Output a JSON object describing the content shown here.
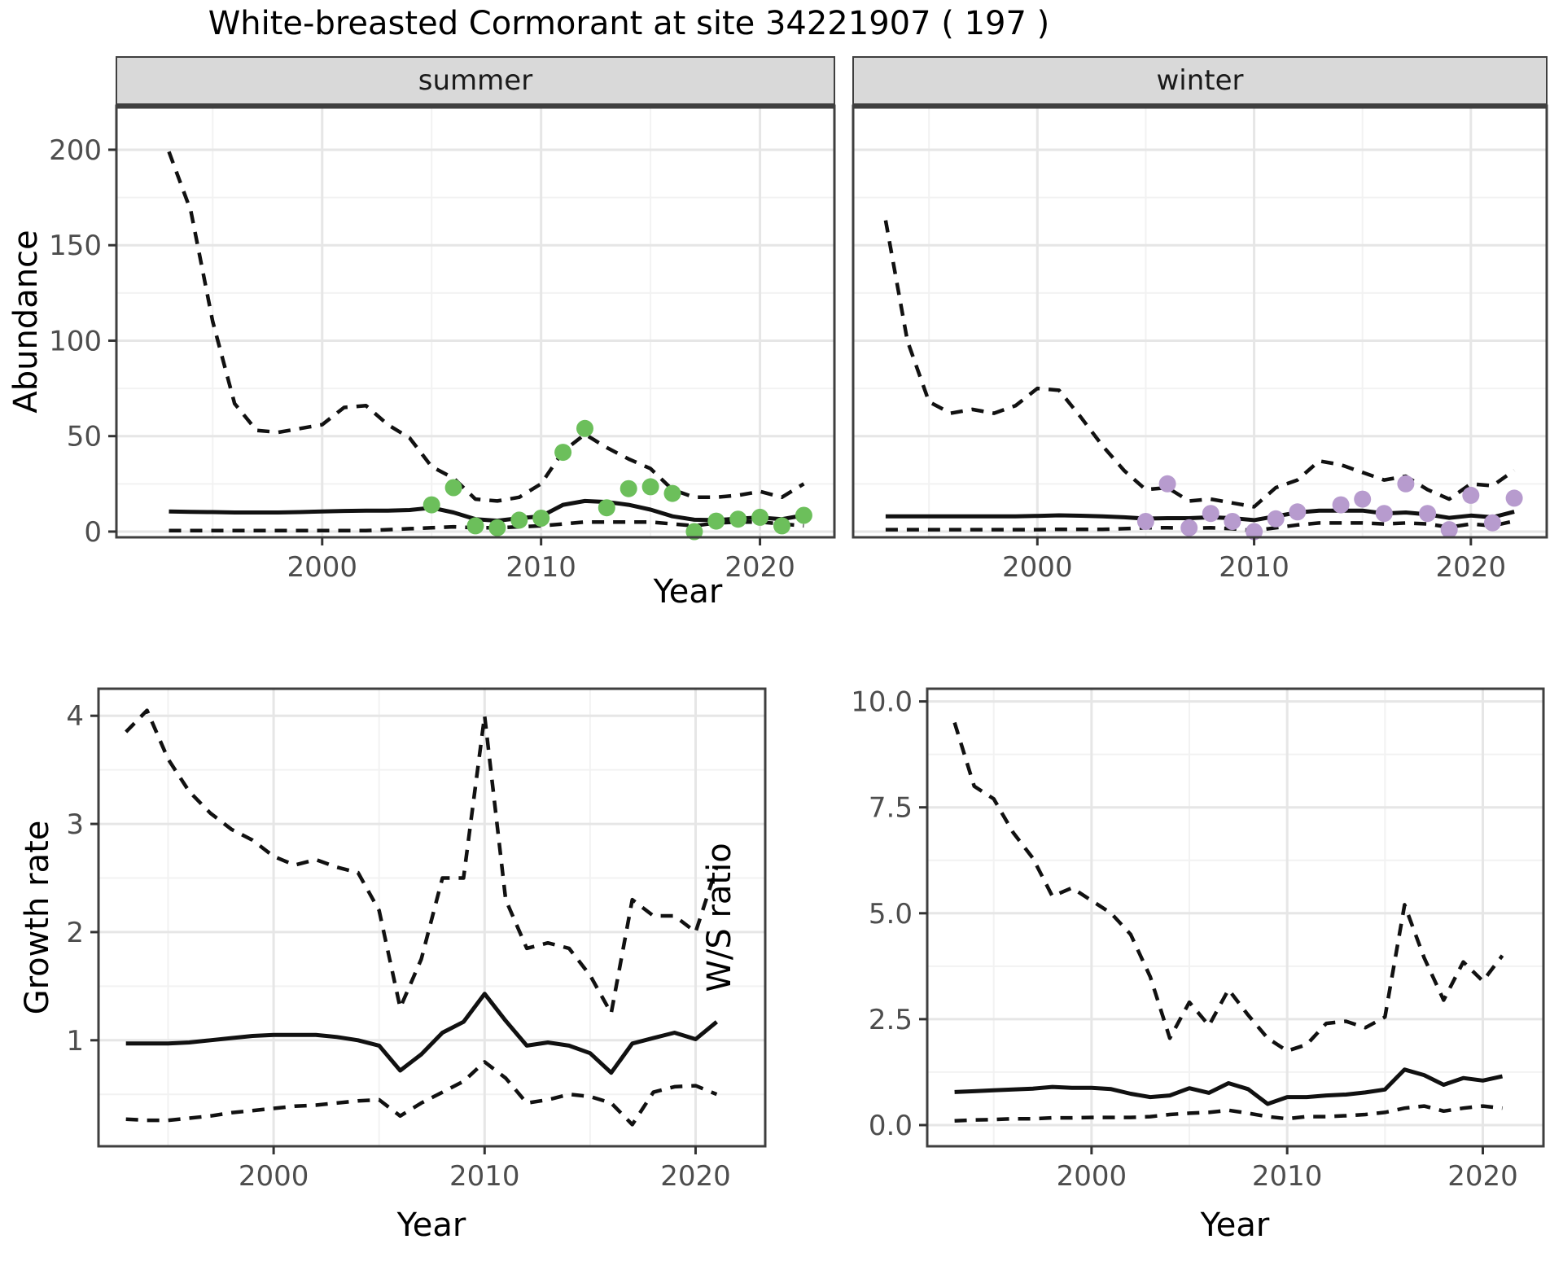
{
  "title": "White-breasted Cormorant at site 34221907 ( 197 )",
  "colors": {
    "summer_point": "#6CBF5B",
    "winter_point": "#B79BCE",
    "line": "#111111",
    "grid_major": "#E6E6E6",
    "grid_minor": "#F2F2F2",
    "strip_bg": "#D9D9D9",
    "panel_border": "#3F3F3F",
    "tick_text": "#4D4D4D"
  },
  "chart_data": [
    {
      "id": "abundance-summer",
      "type": "line",
      "facet_label": "summer",
      "xlabel": "Year",
      "ylabel": "Abundance",
      "xlim": [
        1990.6,
        2023.4
      ],
      "ylim": [
        -3,
        223
      ],
      "xticks": [
        2000,
        2010,
        2020
      ],
      "xtick_labels": [
        "2000",
        "2010",
        "2020"
      ],
      "xminor": [
        1995,
        2005,
        2015
      ],
      "ytick_values": [
        0,
        50,
        100,
        150,
        200
      ],
      "ytick_labels": [
        "0",
        "50",
        "100",
        "150",
        "200"
      ],
      "yminor": [
        25,
        75,
        125,
        175
      ],
      "x": [
        1993,
        1994,
        1995,
        1996,
        1997,
        1998,
        1999,
        2000,
        2001,
        2002,
        2003,
        2004,
        2005,
        2006,
        2007,
        2008,
        2009,
        2010,
        2011,
        2012,
        2013,
        2014,
        2015,
        2016,
        2017,
        2018,
        2019,
        2020,
        2021,
        2022
      ],
      "series": [
        {
          "name": "upper-ci",
          "style": "dashed",
          "values": [
            199,
            168,
            110,
            67,
            53,
            52,
            54,
            56,
            65,
            66,
            56,
            49,
            34,
            28,
            17,
            16,
            18,
            25,
            42,
            51,
            44,
            38,
            33,
            22,
            18,
            18,
            19,
            21,
            18,
            25
          ]
        },
        {
          "name": "median",
          "style": "solid",
          "values": [
            10.5,
            10.3,
            10.2,
            10,
            10,
            10,
            10.2,
            10.5,
            10.8,
            11,
            11,
            11.3,
            12.5,
            10,
            6.5,
            5.7,
            7,
            8,
            14,
            16,
            15.5,
            14,
            11.5,
            8,
            6.2,
            6,
            6.8,
            7.3,
            6.5,
            8.5
          ]
        },
        {
          "name": "lower-ci",
          "style": "dashed",
          "values": [
            0.5,
            0.5,
            0.5,
            0.5,
            0.5,
            0.5,
            0.5,
            0.5,
            0.5,
            0.5,
            1,
            1.5,
            2,
            2.5,
            2,
            2,
            2.5,
            3,
            4,
            5,
            5,
            5,
            5,
            4,
            3,
            4.5,
            5,
            5,
            4,
            3
          ]
        }
      ],
      "points": {
        "name": "observed-counts-summer",
        "color": "#6CBF5B",
        "x": [
          2005,
          2006,
          2007,
          2008,
          2009,
          2010,
          2011,
          2012,
          2013,
          2014,
          2015,
          2016,
          2017,
          2018,
          2019,
          2020,
          2021,
          2022
        ],
        "y": [
          14,
          23,
          3,
          2,
          6,
          7,
          41.5,
          54,
          12.5,
          22.5,
          23.5,
          20,
          0,
          5.5,
          6.5,
          7.5,
          3,
          8.5
        ]
      }
    },
    {
      "id": "abundance-winter",
      "type": "line",
      "facet_label": "winter",
      "xlabel": "Year",
      "ylabel": "Abundance",
      "xlim": [
        1991.5,
        2023.5
      ],
      "ylim": [
        -3,
        223
      ],
      "xticks": [
        2000,
        2010,
        2020
      ],
      "xtick_labels": [
        "2000",
        "2010",
        "2020"
      ],
      "xminor": [
        1995,
        2005,
        2015
      ],
      "ytick_values": [
        0,
        50,
        100,
        150,
        200
      ],
      "ytick_labels": [
        "0",
        "50",
        "100",
        "150",
        "200"
      ],
      "yminor": [
        25,
        75,
        125,
        175
      ],
      "x": [
        1993,
        1994,
        1995,
        1996,
        1997,
        1998,
        1999,
        2000,
        2001,
        2002,
        2003,
        2004,
        2005,
        2006,
        2007,
        2008,
        2009,
        2010,
        2011,
        2012,
        2013,
        2014,
        2015,
        2016,
        2017,
        2018,
        2019,
        2020,
        2021,
        2022
      ],
      "series": [
        {
          "name": "upper-ci",
          "style": "dashed",
          "values": [
            163,
            100,
            68,
            62,
            64,
            62,
            66,
            75,
            74,
            60,
            45,
            32,
            22,
            23,
            16,
            17,
            15,
            13,
            23,
            27,
            37,
            35,
            31,
            27,
            29,
            22,
            17,
            25,
            24,
            32
          ]
        },
        {
          "name": "median",
          "style": "solid",
          "values": [
            8,
            8,
            8,
            8,
            8,
            8,
            8,
            8.2,
            8.5,
            8.3,
            8,
            7.5,
            6.8,
            7,
            7,
            7.5,
            7,
            6,
            8,
            10,
            11,
            11,
            11,
            9.5,
            10,
            9,
            7.2,
            8.4,
            7.5,
            10.4
          ]
        },
        {
          "name": "lower-ci",
          "style": "dashed",
          "values": [
            1,
            1,
            1,
            1,
            1,
            1,
            1,
            1,
            1.2,
            1.2,
            1.2,
            1.5,
            2,
            2,
            1.8,
            2,
            1.5,
            0.5,
            2,
            3.5,
            4.5,
            4.5,
            4.5,
            4,
            4.5,
            4,
            2.3,
            4,
            3,
            5.5
          ]
        }
      ],
      "points": {
        "name": "observed-counts-winter",
        "color": "#B79BCE",
        "x": [
          2005,
          2006,
          2007,
          2008,
          2009,
          2010,
          2011,
          2012,
          2014,
          2015,
          2016,
          2017,
          2018,
          2019,
          2020,
          2021,
          2022
        ],
        "y": [
          5.3,
          25,
          2,
          9.5,
          5.3,
          0,
          6.7,
          10.3,
          14,
          17,
          9.5,
          25,
          9.5,
          1,
          19,
          4.6,
          17.5
        ]
      }
    },
    {
      "id": "growth-rate",
      "type": "line",
      "facet_label": "",
      "xlabel": "Year",
      "ylabel": "Growth rate",
      "xlim": [
        1991.7,
        2023.3
      ],
      "ylim": [
        0.02,
        4.25
      ],
      "xticks": [
        2000,
        2010,
        2020
      ],
      "xtick_labels": [
        "2000",
        "2010",
        "2020"
      ],
      "xminor": [
        1995,
        2005,
        2015
      ],
      "ytick_values": [
        1,
        2,
        3,
        4
      ],
      "ytick_labels": [
        "1",
        "2",
        "3",
        "4"
      ],
      "yminor": [
        0.5,
        1.5,
        2.5,
        3.5
      ],
      "x": [
        1993,
        1994,
        1995,
        1996,
        1997,
        1998,
        1999,
        2000,
        2001,
        2002,
        2003,
        2004,
        2005,
        2006,
        2007,
        2008,
        2009,
        2010,
        2011,
        2012,
        2013,
        2014,
        2015,
        2016,
        2017,
        2018,
        2019,
        2020,
        2021
      ],
      "series": [
        {
          "name": "upper-ci",
          "style": "dashed",
          "values": [
            3.85,
            4.05,
            3.6,
            3.3,
            3.1,
            2.95,
            2.85,
            2.7,
            2.62,
            2.67,
            2.6,
            2.55,
            2.2,
            1.3,
            1.75,
            2.5,
            2.5,
            4.0,
            2.3,
            1.85,
            1.9,
            1.85,
            1.6,
            1.25,
            2.3,
            2.15,
            2.15,
            2.0,
            2.6
          ]
        },
        {
          "name": "median",
          "style": "solid",
          "values": [
            0.97,
            0.97,
            0.97,
            0.98,
            1.0,
            1.02,
            1.04,
            1.05,
            1.05,
            1.05,
            1.03,
            1.0,
            0.95,
            0.72,
            0.87,
            1.07,
            1.17,
            1.43,
            1.18,
            0.95,
            0.98,
            0.95,
            0.88,
            0.7,
            0.97,
            1.02,
            1.07,
            1.01,
            1.17
          ]
        },
        {
          "name": "lower-ci",
          "style": "dashed",
          "values": [
            0.27,
            0.26,
            0.26,
            0.28,
            0.3,
            0.33,
            0.35,
            0.37,
            0.39,
            0.4,
            0.42,
            0.44,
            0.45,
            0.3,
            0.42,
            0.52,
            0.62,
            0.8,
            0.65,
            0.42,
            0.45,
            0.5,
            0.48,
            0.42,
            0.22,
            0.52,
            0.57,
            0.58,
            0.5
          ]
        }
      ],
      "points": null
    },
    {
      "id": "ws-ratio",
      "type": "line",
      "facet_label": "",
      "xlabel": "Year",
      "ylabel": "W/S ratio",
      "xlim": [
        1991.6,
        2023.1
      ],
      "ylim": [
        -0.5,
        10.3
      ],
      "xticks": [
        2000,
        2010,
        2020
      ],
      "xtick_labels": [
        "2000",
        "2010",
        "2020"
      ],
      "xminor": [
        1995,
        2005,
        2015
      ],
      "ytick_values": [
        0,
        2.5,
        5,
        7.5,
        10
      ],
      "ytick_labels": [
        "0.0",
        "2.5",
        "5.0",
        "7.5",
        "10.0"
      ],
      "yminor": [
        1.25,
        3.75,
        6.25,
        8.75
      ],
      "x": [
        1993,
        1994,
        1995,
        1996,
        1997,
        1998,
        1999,
        2000,
        2001,
        2002,
        2003,
        2004,
        2005,
        2006,
        2007,
        2008,
        2009,
        2010,
        2011,
        2012,
        2013,
        2014,
        2015,
        2016,
        2017,
        2018,
        2019,
        2020,
        2021
      ],
      "series": [
        {
          "name": "upper-ci",
          "style": "dashed",
          "values": [
            9.5,
            8.0,
            7.7,
            6.9,
            6.3,
            5.4,
            5.6,
            5.3,
            5.0,
            4.5,
            3.5,
            2.05,
            2.9,
            2.35,
            3.2,
            2.6,
            2.05,
            1.75,
            1.9,
            2.4,
            2.45,
            2.3,
            2.55,
            5.2,
            3.95,
            2.95,
            3.85,
            3.4,
            4.0
          ]
        },
        {
          "name": "median",
          "style": "solid",
          "values": [
            0.78,
            0.8,
            0.82,
            0.84,
            0.86,
            0.9,
            0.88,
            0.88,
            0.85,
            0.74,
            0.66,
            0.7,
            0.87,
            0.76,
            0.99,
            0.85,
            0.5,
            0.66,
            0.66,
            0.7,
            0.72,
            0.77,
            0.84,
            1.31,
            1.18,
            0.95,
            1.11,
            1.05,
            1.15
          ]
        },
        {
          "name": "lower-ci",
          "style": "dashed",
          "values": [
            0.1,
            0.12,
            0.13,
            0.15,
            0.15,
            0.17,
            0.17,
            0.18,
            0.18,
            0.18,
            0.2,
            0.25,
            0.28,
            0.3,
            0.35,
            0.28,
            0.2,
            0.15,
            0.2,
            0.2,
            0.22,
            0.25,
            0.3,
            0.4,
            0.45,
            0.33,
            0.4,
            0.45,
            0.4
          ]
        }
      ],
      "points": null
    }
  ]
}
